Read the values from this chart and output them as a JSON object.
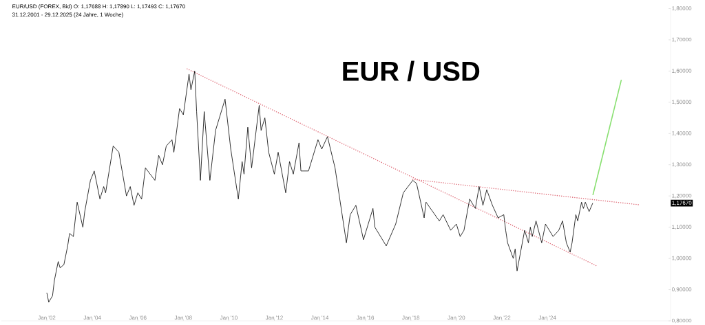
{
  "chart_data": {
    "type": "line",
    "title": "EUR / USD",
    "subtitle": "EUR/USD (FOREX, Bid)  O: 1,17688  H: 1,17890  L: 1,17493  C: 1,17670",
    "annotations": [
      "31.12.2001 - 29.12.2025  (24 Jahre, 1 Woche)",
      "1,17670"
    ],
    "xlim": [
      "2000-01",
      "2029-06"
    ],
    "ylim": [
      0.8,
      1.8
    ],
    "xticks": [
      {
        "value": "2002-01",
        "label": "Jan '02"
      },
      {
        "value": "2004-01",
        "label": "Jan '04"
      },
      {
        "value": "2006-01",
        "label": "Jan '06"
      },
      {
        "value": "2008-01",
        "label": "Jan '08"
      },
      {
        "value": "2010-01",
        "label": "Jan '10"
      },
      {
        "value": "2012-01",
        "label": "Jan '12"
      },
      {
        "value": "2014-01",
        "label": "Jan '14"
      },
      {
        "value": "2016-01",
        "label": "Jan '16"
      },
      {
        "value": "2018-01",
        "label": "Jan '18"
      },
      {
        "value": "2020-01",
        "label": "Jan '20"
      },
      {
        "value": "2022-01",
        "label": "Jan '22"
      },
      {
        "value": "2024-01",
        "label": "Jan '24"
      }
    ],
    "yticks": [
      {
        "value": 0.8,
        "label": "0,80000"
      },
      {
        "value": 0.9,
        "label": "0,90000"
      },
      {
        "value": 1.0,
        "label": "1,00000"
      },
      {
        "value": 1.1,
        "label": "1,10000"
      },
      {
        "value": 1.2,
        "label": "1,20000"
      },
      {
        "value": 1.3,
        "label": "1,30000"
      },
      {
        "value": 1.4,
        "label": "1,40000"
      },
      {
        "value": 1.5,
        "label": "1,50000"
      },
      {
        "value": 1.6,
        "label": "1,60000"
      },
      {
        "value": 1.7,
        "label": "1,70000"
      },
      {
        "value": 1.8,
        "label": "1,80000"
      }
    ],
    "grid": false,
    "series": [
      {
        "color": "#000000",
        "x": [
          "2002-01",
          "2002-02",
          "2002-04",
          "2002-05",
          "2002-07",
          "2002-08",
          "2002-10",
          "2002-12",
          "2003-01",
          "2003-03",
          "2003-05",
          "2003-08",
          "2003-09",
          "2003-12",
          "2004-02",
          "2004-05",
          "2004-07",
          "2004-08",
          "2004-12",
          "2005-03",
          "2005-07",
          "2005-09",
          "2005-11",
          "2006-01",
          "2006-03",
          "2006-05",
          "2006-10",
          "2006-12",
          "2007-02",
          "2007-04",
          "2007-07",
          "2007-08",
          "2007-11",
          "2008-01",
          "2008-04",
          "2008-05",
          "2008-07",
          "2008-08",
          "2008-10",
          "2008-12",
          "2009-03",
          "2009-06",
          "2009-11",
          "2010-02",
          "2010-06",
          "2010-08",
          "2010-09",
          "2010-11",
          "2011-01",
          "2011-05",
          "2011-06",
          "2011-08",
          "2011-10",
          "2012-01",
          "2012-03",
          "2012-07",
          "2012-09",
          "2012-11",
          "2013-02",
          "2013-03",
          "2013-07",
          "2013-12",
          "2014-02",
          "2014-05",
          "2014-09",
          "2015-01",
          "2015-03",
          "2015-05",
          "2015-08",
          "2015-12",
          "2016-05",
          "2016-06",
          "2016-12",
          "2017-05",
          "2017-09",
          "2018-02",
          "2018-04",
          "2018-08",
          "2018-09",
          "2019-04",
          "2019-06",
          "2019-10",
          "2020-01",
          "2020-03",
          "2020-05",
          "2020-08",
          "2020-11",
          "2021-01",
          "2021-03",
          "2021-05",
          "2021-08",
          "2021-11",
          "2022-02",
          "2022-03",
          "2022-04",
          "2022-07",
          "2022-08",
          "2022-09",
          "2023-01",
          "2023-03",
          "2023-04",
          "2023-05",
          "2023-07",
          "2023-10",
          "2023-12",
          "2024-04",
          "2024-07",
          "2024-09",
          "2024-11",
          "2025-01",
          "2025-02",
          "2025-04",
          "2025-05",
          "2025-07",
          "2025-08",
          "2025-09",
          "2025-11",
          "2025-12-29"
        ],
        "values": [
          0.89,
          0.86,
          0.88,
          0.93,
          0.99,
          0.97,
          0.98,
          1.04,
          1.08,
          1.07,
          1.18,
          1.1,
          1.15,
          1.25,
          1.28,
          1.19,
          1.23,
          1.21,
          1.36,
          1.34,
          1.2,
          1.23,
          1.17,
          1.21,
          1.19,
          1.29,
          1.25,
          1.33,
          1.3,
          1.36,
          1.38,
          1.34,
          1.48,
          1.46,
          1.59,
          1.54,
          1.6,
          1.47,
          1.25,
          1.47,
          1.25,
          1.41,
          1.51,
          1.35,
          1.19,
          1.31,
          1.27,
          1.42,
          1.29,
          1.49,
          1.41,
          1.45,
          1.34,
          1.27,
          1.34,
          1.21,
          1.31,
          1.27,
          1.37,
          1.28,
          1.28,
          1.38,
          1.35,
          1.39,
          1.29,
          1.13,
          1.05,
          1.14,
          1.17,
          1.06,
          1.16,
          1.1,
          1.04,
          1.11,
          1.21,
          1.25,
          1.24,
          1.13,
          1.18,
          1.12,
          1.14,
          1.09,
          1.11,
          1.07,
          1.09,
          1.19,
          1.16,
          1.23,
          1.17,
          1.22,
          1.17,
          1.13,
          1.14,
          1.09,
          1.05,
          1.0,
          1.03,
          0.96,
          1.09,
          1.05,
          1.1,
          1.07,
          1.12,
          1.05,
          1.11,
          1.07,
          1.09,
          1.12,
          1.05,
          1.02,
          1.05,
          1.14,
          1.12,
          1.18,
          1.16,
          1.18,
          1.15,
          1.177
        ]
      },
      {
        "type": "line",
        "color": "#e0707c",
        "line_style": "dotted",
        "x": [
          "2008-03",
          "2026-03"
        ],
        "values": [
          1.607,
          0.976
        ]
      },
      {
        "type": "line",
        "color": "#e0707c",
        "line_style": "dotted",
        "x": [
          "2018-02",
          "2028-01"
        ],
        "values": [
          1.253,
          1.172
        ]
      },
      {
        "type": "line",
        "color": "#88e070",
        "x": [
          "2026-01",
          "2027-04"
        ],
        "values": [
          1.203,
          1.572
        ]
      }
    ]
  }
}
